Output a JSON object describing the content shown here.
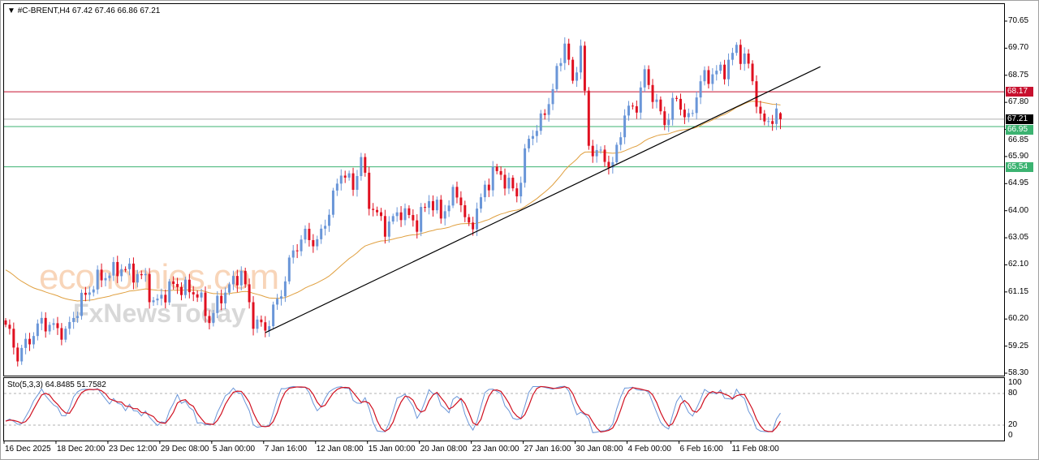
{
  "header": {
    "symbol_line": "#C-BRENT,H4  67.42 67.46 66.86 67.21",
    "menu_icon": "triangle-down-icon"
  },
  "watermark": {
    "line1": "economies.com",
    "line2": "FxNewsToday"
  },
  "colors": {
    "bull": "#6a96d8",
    "bear": "#e01020",
    "ma": "#e0a040",
    "trend": "#000000",
    "resistance": "#c8102e",
    "support": "#3cb371",
    "current": "#b0b0b0",
    "stoch_main": "#6a96d8",
    "stoch_signal": "#d01020"
  },
  "price_axis": {
    "ticks": [
      "70.65",
      "69.70",
      "68.75",
      "67.80",
      "66.85",
      "65.90",
      "64.95",
      "64.00",
      "63.05",
      "62.10",
      "61.15",
      "60.20",
      "59.25",
      "58.30"
    ]
  },
  "levels": [
    {
      "label": "68.17",
      "value": 68.17,
      "kind": "resistance"
    },
    {
      "label": "67.21",
      "value": 67.21,
      "kind": "current"
    },
    {
      "label": "66.95",
      "value": 66.95,
      "kind": "support"
    },
    {
      "label": "65.54",
      "value": 65.54,
      "kind": "support"
    }
  ],
  "stochastic": {
    "title": "Sto(5,3,3) 64.8485 51.7582",
    "ticks": [
      "100",
      "80",
      "20",
      "0"
    ],
    "levels": [
      80,
      20
    ]
  },
  "chart_data": {
    "type": "candlestick",
    "symbol": "#C-BRENT",
    "timeframe": "H4",
    "last_bar": {
      "open": 67.42,
      "high": 67.46,
      "low": 66.86,
      "close": 67.21
    },
    "ylim": [
      58.3,
      70.65
    ],
    "bars": 195,
    "x_ticks": [
      {
        "bar": 0,
        "label": "16 Dec 2025"
      },
      {
        "bar": 13,
        "label": "18 Dec 20:00"
      },
      {
        "bar": 26,
        "label": "23 Dec 12:00"
      },
      {
        "bar": 39,
        "label": "29 Dec 08:00"
      },
      {
        "bar": 52,
        "label": "5 Jan 00:00"
      },
      {
        "bar": 65,
        "label": "7 Jan 16:00"
      },
      {
        "bar": 78,
        "label": "12 Jan 08:00"
      },
      {
        "bar": 91,
        "label": "15 Jan 00:00"
      },
      {
        "bar": 104,
        "label": "20 Jan 08:00"
      },
      {
        "bar": 117,
        "label": "23 Jan 00:00"
      },
      {
        "bar": 130,
        "label": "27 Jan 16:00"
      },
      {
        "bar": 143,
        "label": "30 Jan 08:00"
      },
      {
        "bar": 156,
        "label": "4 Feb 00:00"
      },
      {
        "bar": 169,
        "label": "6 Feb 16:00"
      },
      {
        "bar": 182,
        "label": "11 Feb 08:00"
      }
    ],
    "close_path": [
      [
        0,
        60.0
      ],
      [
        3,
        58.9
      ],
      [
        9,
        60.1
      ],
      [
        15,
        59.7
      ],
      [
        19,
        60.85
      ],
      [
        23,
        61.6
      ],
      [
        29,
        62.0
      ],
      [
        35,
        61.6
      ],
      [
        37,
        60.7
      ],
      [
        42,
        61.4
      ],
      [
        48,
        61.1
      ],
      [
        51,
        60.15
      ],
      [
        54,
        61.0
      ],
      [
        59,
        61.85
      ],
      [
        62,
        60.15
      ],
      [
        65,
        59.85
      ],
      [
        69,
        61.15
      ],
      [
        72,
        62.6
      ],
      [
        75,
        63.15
      ],
      [
        78,
        62.85
      ],
      [
        81,
        64.0
      ],
      [
        84,
        65.4
      ],
      [
        87,
        64.85
      ],
      [
        89,
        65.85
      ],
      [
        91,
        64.3
      ],
      [
        95,
        63.4
      ],
      [
        99,
        64.0
      ],
      [
        103,
        63.55
      ],
      [
        106,
        64.4
      ],
      [
        109,
        63.85
      ],
      [
        113,
        64.7
      ],
      [
        116,
        63.3
      ],
      [
        119,
        64.4
      ],
      [
        122,
        65.4
      ],
      [
        125,
        65.1
      ],
      [
        128,
        64.55
      ],
      [
        131,
        66.55
      ],
      [
        134,
        67.1
      ],
      [
        137,
        68.25
      ],
      [
        140,
        69.95
      ],
      [
        142,
        68.4
      ],
      [
        144,
        69.8
      ],
      [
        146,
        66.25
      ],
      [
        149,
        65.95
      ],
      [
        152,
        65.55
      ],
      [
        155,
        67.4
      ],
      [
        158,
        67.7
      ],
      [
        160,
        68.8
      ],
      [
        163,
        67.7
      ],
      [
        165,
        67.1
      ],
      [
        168,
        67.95
      ],
      [
        171,
        67.1
      ],
      [
        174,
        68.55
      ],
      [
        177,
        68.8
      ],
      [
        180,
        68.95
      ],
      [
        183,
        69.7
      ],
      [
        186,
        69.1
      ],
      [
        188,
        67.95
      ],
      [
        189,
        67.1
      ],
      [
        192,
        67.25
      ],
      [
        194,
        67.21
      ]
    ],
    "moving_average": {
      "type": "EMA",
      "period": 50,
      "start_value": 62.0
    },
    "trendline": {
      "from": {
        "bar": 65,
        "price": 59.72
      },
      "to": {
        "bar": 204,
        "price": 69.05
      }
    }
  }
}
